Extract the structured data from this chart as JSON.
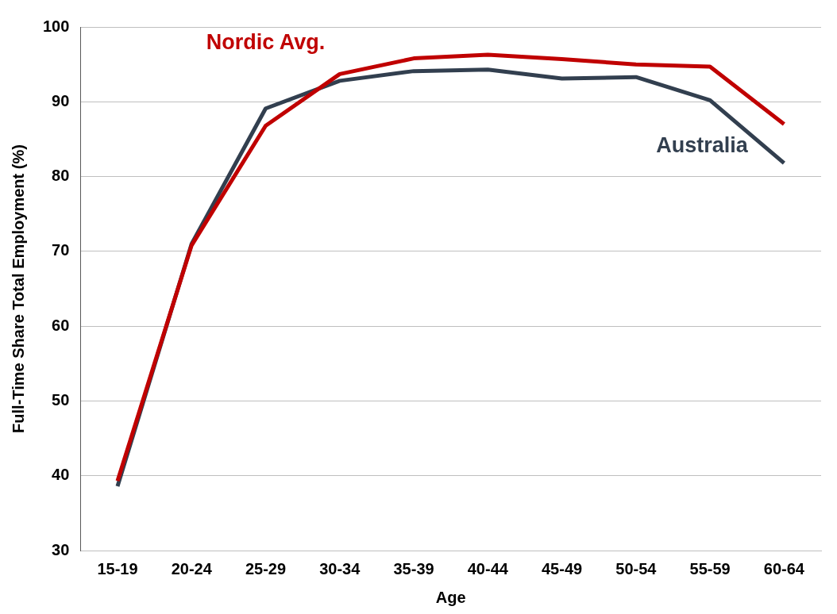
{
  "chart_data": {
    "type": "line",
    "xlabel": "Age",
    "ylabel": "Full-Time Share Total Employment (%)",
    "categories": [
      "15-19",
      "20-24",
      "25-29",
      "30-34",
      "35-39",
      "40-44",
      "45-49",
      "50-54",
      "55-59",
      "60-64"
    ],
    "series": [
      {
        "name": "Nordic Avg.",
        "color": "#c00000",
        "values": [
          39.3,
          70.8,
          86.8,
          93.7,
          95.8,
          96.3,
          95.7,
          95.0,
          94.7,
          87.0
        ]
      },
      {
        "name": "Australia",
        "color": "#323f4f",
        "values": [
          38.6,
          71.0,
          89.1,
          92.8,
          94.1,
          94.3,
          93.1,
          93.3,
          90.2,
          81.8
        ]
      }
    ],
    "ylim": [
      30,
      100
    ],
    "yticks": [
      30,
      40,
      50,
      60,
      70,
      80,
      90,
      100
    ],
    "grid": "y",
    "legend": false,
    "marker": "none",
    "line_style": "solid"
  }
}
